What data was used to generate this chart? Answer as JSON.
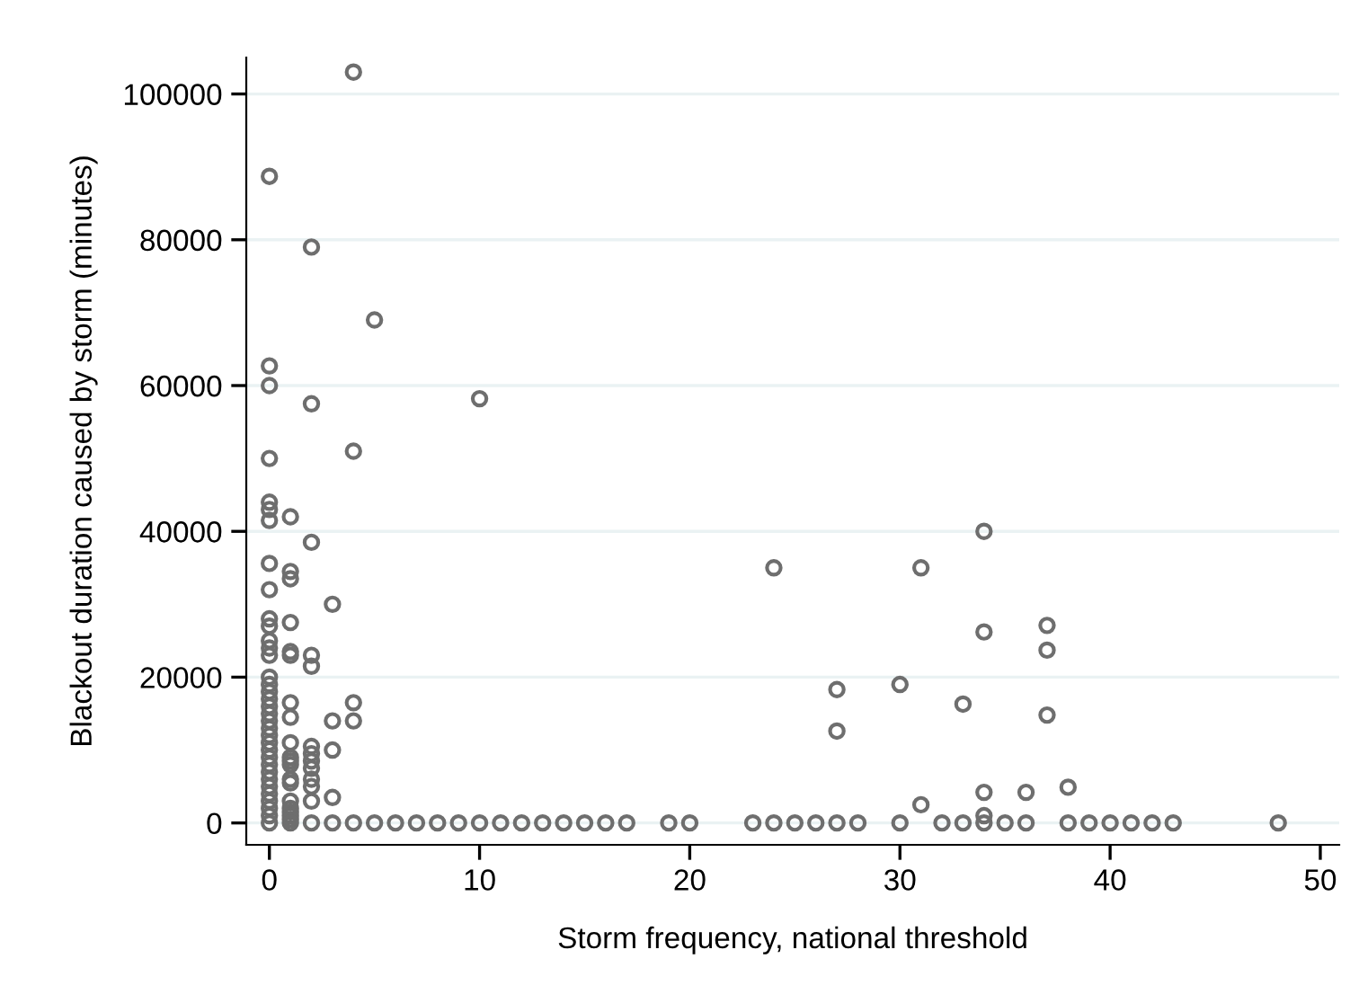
{
  "chart_data": {
    "type": "scatter",
    "xlabel": "Storm frequency, national threshold",
    "ylabel": "Blackout duration caused by storm (minutes)",
    "xlim": [
      -1.1,
      50.9
    ],
    "ylim": [
      -3000,
      105000
    ],
    "xticks": [
      0,
      10,
      20,
      30,
      40,
      50
    ],
    "yticks": [
      0,
      20000,
      40000,
      60000,
      80000,
      100000
    ],
    "grid": "y",
    "marker": "circle",
    "series": [
      {
        "color": "#6e6e6e",
        "x": [
          0,
          0,
          0,
          0,
          0,
          0,
          0,
          0,
          0,
          0,
          0,
          0,
          0,
          0,
          0,
          0,
          0,
          0,
          0,
          0,
          0,
          0,
          0,
          0,
          0,
          0,
          0,
          0,
          0,
          0,
          0,
          0,
          0,
          0,
          0,
          1,
          1,
          1,
          1,
          1,
          1,
          1,
          1,
          1,
          1,
          1,
          1,
          1,
          1,
          1,
          1,
          1,
          1,
          1,
          1,
          2,
          2,
          2,
          2,
          2,
          2,
          2,
          2,
          2,
          2,
          2,
          2,
          2,
          3,
          3,
          3,
          3,
          3,
          4,
          4,
          4,
          4,
          4,
          5,
          5,
          10,
          10,
          6,
          7,
          8,
          9,
          11,
          12,
          13,
          14,
          15,
          16,
          17,
          19,
          20,
          23,
          24,
          25,
          26,
          27,
          28,
          30,
          32,
          33,
          34,
          35,
          36,
          38,
          39,
          40,
          41,
          42,
          43,
          48,
          24,
          31,
          34,
          34,
          37,
          37,
          27,
          27,
          30,
          33,
          37,
          31,
          34,
          34,
          36,
          38
        ],
        "values": [
          88700,
          62700,
          60000,
          50000,
          44000,
          43000,
          41500,
          35600,
          32000,
          28000,
          27000,
          25000,
          24000,
          23000,
          20000,
          19000,
          18000,
          17000,
          16000,
          15000,
          14000,
          13000,
          12000,
          11000,
          10000,
          9000,
          8000,
          7000,
          6000,
          5000,
          4000,
          3000,
          2000,
          1000,
          0,
          42000,
          34500,
          33500,
          27500,
          23500,
          23000,
          16500,
          14500,
          11000,
          9000,
          8500,
          8000,
          6000,
          5500,
          3000,
          2000,
          1500,
          1000,
          500,
          0,
          79000,
          57500,
          38500,
          23000,
          21500,
          10500,
          9500,
          8500,
          7500,
          6000,
          5000,
          3000,
          0,
          30000,
          14000,
          10000,
          3500,
          0,
          103000,
          51000,
          16500,
          14000,
          0,
          69000,
          0,
          58200,
          0,
          0,
          0,
          0,
          0,
          0,
          0,
          0,
          0,
          0,
          0,
          0,
          0,
          0,
          0,
          0,
          0,
          0,
          0,
          0,
          0,
          0,
          0,
          0,
          0,
          0,
          0,
          0,
          0,
          0,
          0,
          0,
          0,
          35000,
          35000,
          40000,
          26200,
          27100,
          23700,
          18300,
          12600,
          19000,
          16300,
          14800,
          2500,
          4200,
          1000,
          4200,
          4900
        ]
      }
    ]
  }
}
